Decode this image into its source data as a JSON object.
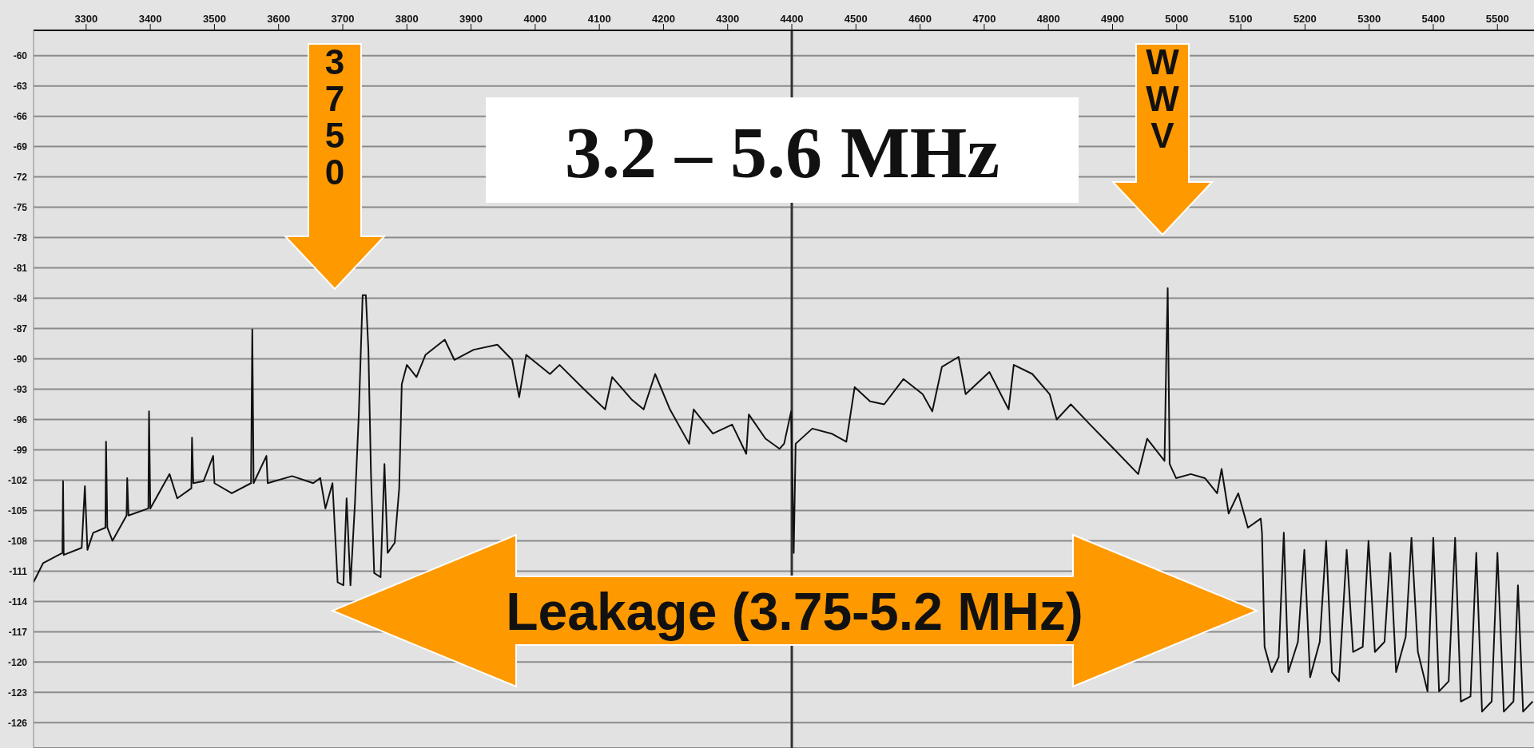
{
  "chart_data": {
    "type": "line",
    "title": "3.2 – 5.6 MHz",
    "x": [
      3218,
      3233,
      3263,
      3264,
      3265,
      3293,
      3298,
      3302,
      3311,
      3330,
      3331,
      3333,
      3341,
      3363,
      3364,
      3366,
      3397,
      3398,
      3400,
      3430,
      3442,
      3464,
      3465,
      3467,
      3483,
      3498,
      3500,
      3527,
      3557,
      3559,
      3561,
      3581,
      3583,
      3621,
      3654,
      3665,
      3673,
      3684,
      3692,
      3701,
      3706,
      3712,
      3719,
      3725,
      3731,
      3736,
      3740,
      3744,
      3749,
      3759,
      3765,
      3770,
      3781,
      3788,
      3792,
      3800,
      3815,
      3829,
      3859,
      3874,
      3904,
      3941,
      3964,
      3975,
      3986,
      4023,
      4038,
      4076,
      4109,
      4120,
      4150,
      4169,
      4187,
      4210,
      4240,
      4247,
      4277,
      4307,
      4329,
      4333,
      4359,
      4381,
      4388,
      4399,
      4403,
      4406,
      4432,
      4462,
      4485,
      4498,
      4522,
      4544,
      4574,
      4604,
      4619,
      4634,
      4660,
      4671,
      4708,
      4738,
      4746,
      4775,
      4802,
      4813,
      4835,
      4865,
      4902,
      4940,
      4954,
      4981,
      4984,
      4986,
      4989,
      4999,
      5022,
      5044,
      5063,
      5070,
      5081,
      5096,
      5111,
      5131,
      5133,
      5137,
      5148,
      5159,
      5167,
      5174,
      5189,
      5199,
      5208,
      5223,
      5233,
      5242,
      5253,
      5265,
      5275,
      5290,
      5299,
      5309,
      5324,
      5333,
      5342,
      5357,
      5366,
      5376,
      5391,
      5400,
      5409,
      5424,
      5434,
      5443,
      5458,
      5467,
      5476,
      5491,
      5500,
      5510,
      5525,
      5532,
      5540,
      5555
    ],
    "series": [
      {
        "color": "#111111",
        "values": [
          -112.1,
          -110.2,
          -109.2,
          -102.1,
          -109.4,
          -108.7,
          -102.6,
          -108.9,
          -107.2,
          -106.7,
          -98.2,
          -106.7,
          -108,
          -105.5,
          -101.8,
          -105.5,
          -104.8,
          -95.2,
          -104.8,
          -101.4,
          -103.8,
          -102.8,
          -97.8,
          -102.3,
          -102.1,
          -99.6,
          -102.3,
          -103.3,
          -102.3,
          -87.1,
          -102.3,
          -99.6,
          -102.3,
          -101.6,
          -102.3,
          -101.8,
          -104.8,
          -102.3,
          -112.1,
          -112.4,
          -103.8,
          -112.4,
          -104.3,
          -95.5,
          -83.7,
          -83.7,
          -89.1,
          -101.4,
          -111.2,
          -111.6,
          -100.4,
          -109.2,
          -108.2,
          -102.8,
          -92.5,
          -90.6,
          -91.8,
          -89.6,
          -88.1,
          -90.1,
          -89.1,
          -88.6,
          -90.1,
          -93.8,
          -89.6,
          -91.5,
          -90.6,
          -93,
          -95,
          -91.8,
          -94,
          -95,
          -91.5,
          -95,
          -98.4,
          -95,
          -97.4,
          -96.5,
          -99.4,
          -95.5,
          -97.9,
          -98.9,
          -98.4,
          -95.2,
          -109.2,
          -98.4,
          -96.9,
          -97.4,
          -98.2,
          -92.8,
          -94.2,
          -94.5,
          -92,
          -93.5,
          -95.2,
          -90.8,
          -89.8,
          -93.5,
          -91.3,
          -95,
          -90.6,
          -91.5,
          -93.5,
          -96,
          -94.5,
          -96.5,
          -98.9,
          -101.4,
          -97.9,
          -100.1,
          -89.1,
          -83,
          -100.4,
          -101.8,
          -101.4,
          -101.8,
          -103.3,
          -100.9,
          -105.3,
          -103.3,
          -106.7,
          -105.8,
          -107.2,
          -118.5,
          -121,
          -119.5,
          -107.2,
          -121,
          -118,
          -108.9,
          -121.5,
          -118,
          -108,
          -121,
          -121.9,
          -108.9,
          -119,
          -118.5,
          -108,
          -119,
          -118,
          -109.2,
          -121,
          -117.5,
          -107.7,
          -119,
          -122.9,
          -107.7,
          -122.9,
          -121.9,
          -107.7,
          -123.9,
          -123.4,
          -109.2,
          -124.9,
          -123.9,
          -109.2,
          -124.9,
          -123.9,
          -112.4,
          -124.9,
          -123.9
        ]
      }
    ],
    "xlim": [
      3218,
      5557
    ],
    "xticks": [
      3300,
      3400,
      3500,
      3600,
      3700,
      3800,
      3900,
      4000,
      4100,
      4200,
      4300,
      4400,
      4500,
      4600,
      4700,
      4800,
      4900,
      5000,
      5100,
      5200,
      5300,
      5400,
      5500
    ],
    "ylim": [
      -128.5,
      -57.5
    ],
    "yticks": [
      -60,
      -63,
      -66,
      -69,
      -72,
      -75,
      -78,
      -81,
      -84,
      -87,
      -90,
      -93,
      -96,
      -99,
      -102,
      -105,
      -108,
      -111,
      -114,
      -117,
      -120,
      -123,
      -126
    ],
    "grid": "y",
    "ref_lines": [
      {
        "axis": "x",
        "value": 4400,
        "color": "#333333"
      }
    ],
    "annotations": [
      "3750",
      "WWV",
      "Leakage (3.75-5.2 MHz)"
    ]
  }
}
